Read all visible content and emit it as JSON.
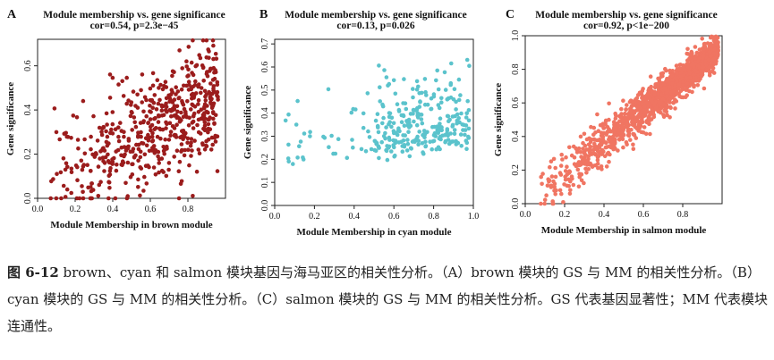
{
  "chart_data": [
    {
      "type": "scatter",
      "panel_label": "A",
      "title": "Module membership vs. gene significance",
      "subtitle": "cor=0.54, p=2.3e−45",
      "xlabel": "Module Membership in brown module",
      "ylabel": "Gene significance",
      "xlim": [
        0.0,
        1.0
      ],
      "ylim": [
        0.0,
        0.72
      ],
      "xticks": [
        "0.0",
        "0.2",
        "0.4",
        "0.6",
        "0.8"
      ],
      "xtick_values": [
        0.0,
        0.2,
        0.4,
        0.6,
        0.8
      ],
      "yticks": [
        "0.0",
        "0.2",
        "0.4",
        "0.6"
      ],
      "ytick_values": [
        0.0,
        0.2,
        0.4,
        0.6
      ],
      "color": "#9b1c1c",
      "n_points": 560,
      "x_range": [
        0.04,
        0.96
      ],
      "cor": 0.54,
      "seed": 11
    },
    {
      "type": "scatter",
      "panel_label": "B",
      "title": "Module membership vs. gene significance",
      "subtitle": "cor=0.13, p=0.026",
      "xlabel": "Module Membership in cyan module",
      "ylabel": "Gene significance",
      "xlim": [
        0.0,
        1.0
      ],
      "ylim": [
        0.0,
        0.72
      ],
      "xticks": [
        "0.0",
        "0.2",
        "0.4",
        "0.6",
        "0.8",
        "1.0"
      ],
      "xtick_values": [
        0.0,
        0.2,
        0.4,
        0.6,
        0.8,
        1.0
      ],
      "yticks": [
        "0.0",
        "0.1",
        "0.2",
        "0.3",
        "0.4",
        "0.5",
        "0.6",
        "0.7"
      ],
      "ytick_values": [
        0.0,
        0.1,
        0.2,
        0.3,
        0.4,
        0.5,
        0.6,
        0.7
      ],
      "color": "#5bc3cc",
      "n_points": 300,
      "x_range": [
        0.04,
        0.98
      ],
      "cor": 0.13,
      "seed": 23
    },
    {
      "type": "scatter",
      "panel_label": "C",
      "title": "Module membership vs. gene significance",
      "subtitle": "cor=0.92, p<1e−200",
      "xlabel": "Module Membership in salmon module",
      "ylabel": "Gene significance",
      "xlim": [
        0.0,
        1.0
      ],
      "ylim": [
        0.0,
        1.0
      ],
      "xticks": [
        "0.0",
        "0.2",
        "0.4",
        "0.6",
        "0.8"
      ],
      "xtick_values": [
        0.0,
        0.2,
        0.4,
        0.6,
        0.8
      ],
      "yticks": [
        "0.0",
        "0.2",
        "0.4",
        "0.6",
        "0.8",
        "1.0"
      ],
      "ytick_values": [
        0.0,
        0.2,
        0.4,
        0.6,
        0.8,
        1.0
      ],
      "color": "#f07562",
      "n_points": 1400,
      "x_range": [
        0.02,
        0.98
      ],
      "cor": 0.92,
      "seed": 37
    }
  ],
  "caption": {
    "figure_label": "图 6-12",
    "text": " brown、cyan 和 salmon 模块基因与海马亚区的相关性分析。（A）brown 模块的 GS 与 MM 的相关性分析。（B）cyan 模块的 GS 与 MM 的相关性分析。（C）salmon 模块的 GS 与 MM 的相关性分析。GS 代表基因显著性；MM 代表模块连通性。"
  }
}
